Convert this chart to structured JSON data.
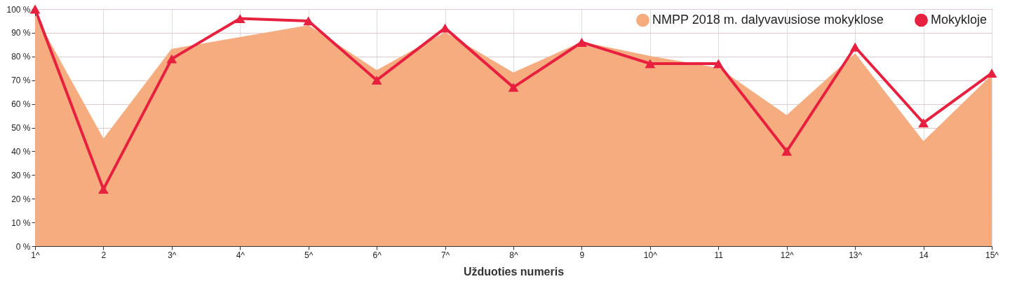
{
  "chart_data": {
    "type": "line",
    "xlabel": "Užduoties numeris",
    "categories": [
      "1^",
      "2",
      "3^",
      "4^",
      "5^",
      "6^",
      "7^",
      "8^",
      "9",
      "10^",
      "11",
      "12^",
      "13^",
      "14",
      "15^"
    ],
    "series": [
      {
        "name": "NMPP 2018 m. dalyvavusiose mokyklose",
        "type": "area",
        "color": "#f5ad80",
        "values": [
          97,
          45,
          83,
          88,
          93,
          74,
          90,
          73,
          86,
          80,
          75,
          55,
          81,
          44,
          72
        ]
      },
      {
        "name": "Mokykloje",
        "color": "#e8203f",
        "marker": "triangle",
        "line_style": "solid",
        "values": [
          100,
          24,
          79,
          96,
          95,
          70,
          92,
          67,
          86,
          77,
          77,
          40,
          84,
          52,
          73
        ]
      }
    ],
    "ylim": [
      0,
      100
    ],
    "yticks": [
      {
        "value": 0,
        "label": "0 %"
      },
      {
        "value": 10,
        "label": "10 %"
      },
      {
        "value": 20,
        "label": "20 %"
      },
      {
        "value": 30,
        "label": "30 %"
      },
      {
        "value": 40,
        "label": "40 %"
      },
      {
        "value": 50,
        "label": "50 %"
      },
      {
        "value": 60,
        "label": "60 %"
      },
      {
        "value": 70,
        "label": "70 %"
      },
      {
        "value": 80,
        "label": "80 %"
      },
      {
        "value": 90,
        "label": "90 %"
      },
      {
        "value": 100,
        "label": "100 %"
      }
    ],
    "grid": true,
    "legend": "top right"
  }
}
